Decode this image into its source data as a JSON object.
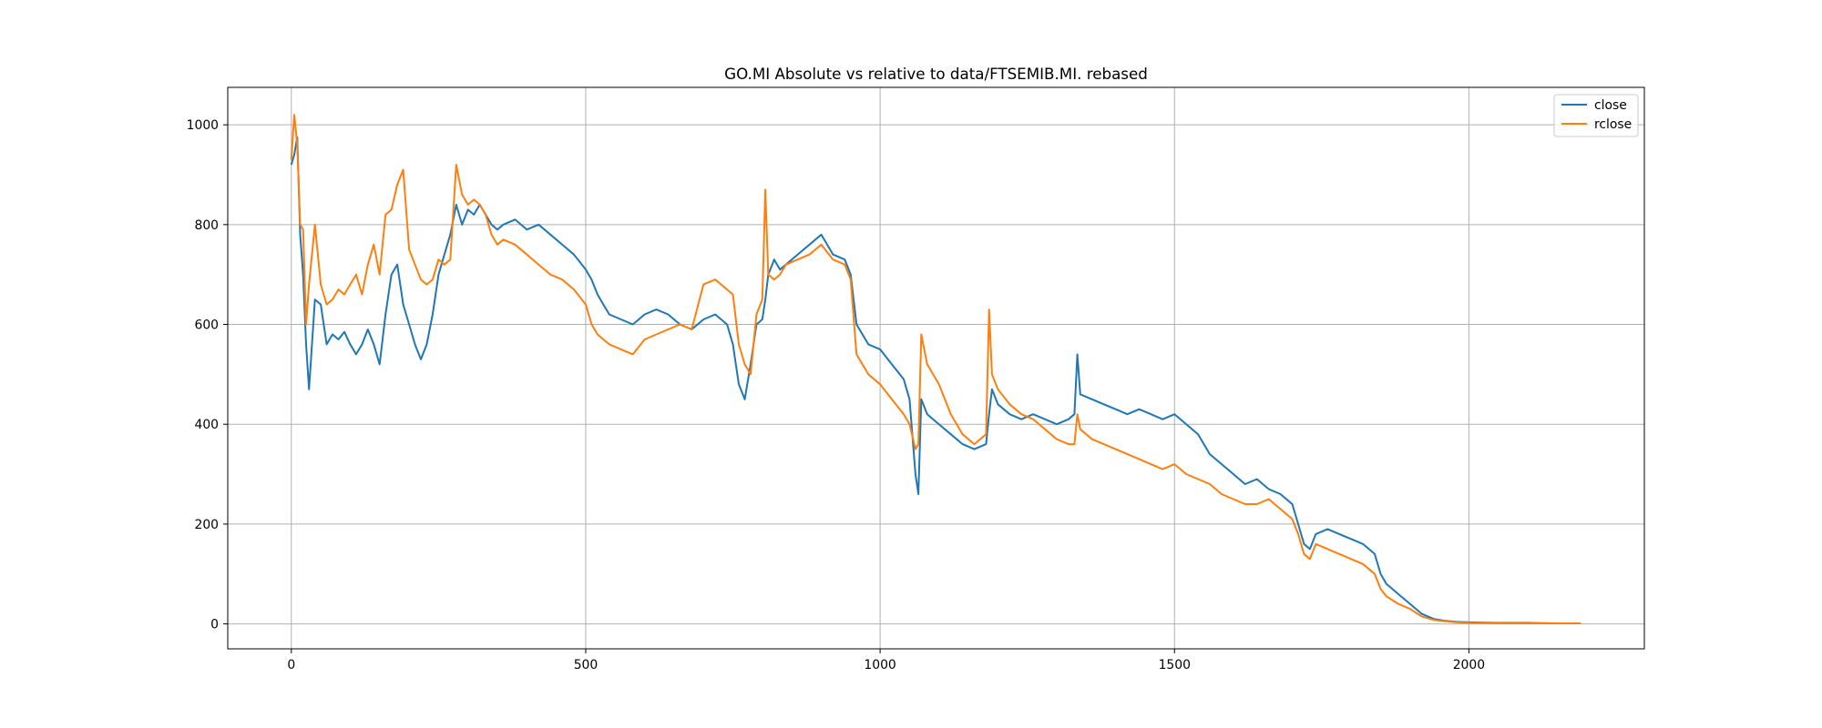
{
  "chart_data": {
    "type": "line",
    "title": "GO.MI Absolute vs relative to data/FTSEMIB.MI. rebased",
    "xlabel": "",
    "ylabel": "",
    "xlim": [
      -108,
      2298
    ],
    "ylim": [
      -50,
      1075
    ],
    "xticks": [
      0,
      500,
      1000,
      1500,
      2000
    ],
    "yticks": [
      0,
      200,
      400,
      600,
      800,
      1000
    ],
    "grid": true,
    "legend_position": "top-right",
    "series": [
      {
        "name": "close",
        "color": "#1f77b4",
        "x": [
          0,
          5,
          10,
          15,
          20,
          25,
          30,
          40,
          50,
          60,
          70,
          80,
          90,
          100,
          110,
          120,
          130,
          140,
          150,
          160,
          170,
          180,
          190,
          200,
          210,
          220,
          230,
          240,
          250,
          260,
          270,
          280,
          290,
          300,
          310,
          320,
          330,
          340,
          350,
          360,
          380,
          400,
          420,
          440,
          460,
          480,
          500,
          510,
          520,
          530,
          540,
          560,
          580,
          600,
          620,
          640,
          660,
          680,
          700,
          720,
          740,
          750,
          760,
          770,
          780,
          790,
          800,
          805,
          810,
          820,
          830,
          840,
          860,
          880,
          900,
          920,
          940,
          950,
          960,
          980,
          1000,
          1020,
          1040,
          1050,
          1060,
          1065,
          1070,
          1080,
          1100,
          1120,
          1140,
          1160,
          1180,
          1185,
          1190,
          1200,
          1220,
          1240,
          1260,
          1280,
          1300,
          1320,
          1330,
          1335,
          1340,
          1360,
          1380,
          1400,
          1420,
          1440,
          1460,
          1480,
          1500,
          1520,
          1540,
          1560,
          1580,
          1600,
          1620,
          1640,
          1660,
          1680,
          1700,
          1710,
          1720,
          1730,
          1740,
          1760,
          1780,
          1800,
          1820,
          1840,
          1850,
          1860,
          1880,
          1900,
          1920,
          1940,
          1960,
          1980,
          2000,
          2050,
          2100,
          2150,
          2190
        ],
        "y": [
          920,
          940,
          975,
          780,
          700,
          560,
          470,
          650,
          640,
          560,
          580,
          570,
          585,
          560,
          540,
          560,
          590,
          560,
          520,
          620,
          700,
          720,
          640,
          600,
          560,
          530,
          560,
          620,
          700,
          740,
          780,
          840,
          800,
          830,
          820,
          840,
          820,
          800,
          790,
          800,
          810,
          790,
          800,
          780,
          760,
          740,
          710,
          690,
          660,
          640,
          620,
          610,
          600,
          620,
          630,
          620,
          600,
          590,
          610,
          620,
          600,
          560,
          480,
          450,
          520,
          600,
          610,
          650,
          700,
          730,
          710,
          720,
          740,
          760,
          780,
          740,
          730,
          700,
          600,
          560,
          550,
          520,
          490,
          450,
          300,
          260,
          450,
          420,
          400,
          380,
          360,
          350,
          360,
          420,
          470,
          440,
          420,
          410,
          420,
          410,
          400,
          410,
          420,
          540,
          460,
          450,
          440,
          430,
          420,
          430,
          420,
          410,
          420,
          400,
          380,
          340,
          320,
          300,
          280,
          290,
          270,
          260,
          240,
          200,
          160,
          150,
          180,
          190,
          180,
          170,
          160,
          140,
          100,
          80,
          60,
          40,
          20,
          10,
          6,
          4,
          3,
          2,
          2,
          1,
          1
        ],
        "values": [
          920,
          940,
          975,
          780,
          700,
          560,
          470,
          650,
          640,
          560,
          580,
          570,
          585,
          560,
          540,
          560,
          590,
          560,
          520,
          620,
          700,
          720,
          640,
          600,
          560,
          530,
          560,
          620,
          700,
          740,
          780,
          840,
          800,
          830,
          820,
          840,
          820,
          800,
          790,
          800,
          810,
          790,
          800,
          780,
          760,
          740,
          710,
          690,
          660,
          640,
          620,
          610,
          600,
          620,
          630,
          620,
          600,
          590,
          610,
          620,
          600,
          560,
          480,
          450,
          520,
          600,
          610,
          650,
          700,
          730,
          710,
          720,
          740,
          760,
          780,
          740,
          730,
          700,
          600,
          560,
          550,
          520,
          490,
          450,
          300,
          260,
          450,
          420,
          400,
          380,
          360,
          350,
          360,
          420,
          470,
          440,
          420,
          410,
          420,
          410,
          400,
          410,
          420,
          540,
          460,
          450,
          440,
          430,
          420,
          430,
          420,
          410,
          420,
          400,
          380,
          340,
          320,
          300,
          280,
          290,
          270,
          260,
          240,
          200,
          160,
          150,
          180,
          190,
          180,
          170,
          160,
          140,
          100,
          80,
          60,
          40,
          20,
          10,
          6,
          4,
          3,
          2,
          2,
          1,
          1
        ]
      },
      {
        "name": "rclose",
        "color": "#ff7f0e",
        "x": [
          0,
          5,
          10,
          15,
          20,
          25,
          30,
          40,
          50,
          60,
          70,
          80,
          90,
          100,
          110,
          120,
          130,
          140,
          150,
          160,
          170,
          180,
          190,
          200,
          210,
          220,
          230,
          240,
          250,
          260,
          270,
          280,
          290,
          300,
          310,
          320,
          330,
          340,
          350,
          360,
          380,
          400,
          420,
          440,
          460,
          480,
          500,
          510,
          520,
          530,
          540,
          560,
          580,
          600,
          620,
          640,
          660,
          680,
          700,
          720,
          740,
          750,
          760,
          770,
          780,
          790,
          800,
          805,
          810,
          820,
          830,
          840,
          860,
          880,
          900,
          920,
          940,
          950,
          960,
          980,
          1000,
          1020,
          1040,
          1050,
          1060,
          1065,
          1070,
          1080,
          1100,
          1120,
          1140,
          1160,
          1180,
          1185,
          1190,
          1200,
          1220,
          1240,
          1260,
          1280,
          1300,
          1320,
          1330,
          1335,
          1340,
          1360,
          1380,
          1400,
          1420,
          1440,
          1460,
          1480,
          1500,
          1520,
          1540,
          1560,
          1580,
          1600,
          1620,
          1640,
          1660,
          1680,
          1700,
          1710,
          1720,
          1730,
          1740,
          1760,
          1780,
          1800,
          1820,
          1840,
          1850,
          1860,
          1880,
          1900,
          1920,
          1940,
          1960,
          1980,
          2000,
          2050,
          2100,
          2150,
          2190
        ],
        "y": [
          930,
          1020,
          960,
          800,
          790,
          600,
          680,
          800,
          680,
          640,
          650,
          670,
          660,
          680,
          700,
          660,
          720,
          760,
          700,
          820,
          830,
          880,
          910,
          750,
          720,
          690,
          680,
          690,
          730,
          720,
          730,
          920,
          860,
          840,
          850,
          840,
          820,
          780,
          760,
          770,
          760,
          740,
          720,
          700,
          690,
          670,
          640,
          600,
          580,
          570,
          560,
          550,
          540,
          570,
          580,
          590,
          600,
          590,
          680,
          690,
          670,
          660,
          560,
          520,
          500,
          620,
          650,
          870,
          700,
          690,
          700,
          720,
          730,
          740,
          760,
          730,
          720,
          690,
          540,
          500,
          480,
          450,
          420,
          400,
          350,
          360,
          580,
          520,
          480,
          420,
          380,
          360,
          380,
          630,
          500,
          470,
          440,
          420,
          410,
          390,
          370,
          360,
          360,
          420,
          390,
          370,
          360,
          350,
          340,
          330,
          320,
          310,
          320,
          300,
          290,
          280,
          260,
          250,
          240,
          240,
          250,
          230,
          210,
          180,
          140,
          130,
          160,
          150,
          140,
          130,
          120,
          100,
          70,
          55,
          40,
          30,
          15,
          8,
          5,
          3,
          2,
          1,
          1,
          1,
          1
        ],
        "values": [
          930,
          1020,
          960,
          800,
          790,
          600,
          680,
          800,
          680,
          640,
          650,
          670,
          660,
          680,
          700,
          660,
          720,
          760,
          700,
          820,
          830,
          880,
          910,
          750,
          720,
          690,
          680,
          690,
          730,
          720,
          730,
          920,
          860,
          840,
          850,
          840,
          820,
          780,
          760,
          770,
          760,
          740,
          720,
          700,
          690,
          670,
          640,
          600,
          580,
          570,
          560,
          550,
          540,
          570,
          580,
          590,
          600,
          590,
          680,
          690,
          670,
          660,
          560,
          520,
          500,
          620,
          650,
          870,
          700,
          690,
          700,
          720,
          730,
          740,
          760,
          730,
          720,
          690,
          540,
          500,
          480,
          450,
          420,
          400,
          350,
          360,
          580,
          520,
          480,
          420,
          380,
          360,
          380,
          630,
          500,
          470,
          440,
          420,
          410,
          390,
          370,
          360,
          360,
          420,
          390,
          370,
          360,
          350,
          340,
          330,
          320,
          310,
          320,
          300,
          290,
          280,
          260,
          250,
          240,
          240,
          250,
          230,
          210,
          180,
          140,
          130,
          160,
          150,
          140,
          130,
          120,
          100,
          70,
          55,
          40,
          30,
          15,
          8,
          5,
          3,
          2,
          1,
          1,
          1,
          1
        ]
      }
    ]
  }
}
